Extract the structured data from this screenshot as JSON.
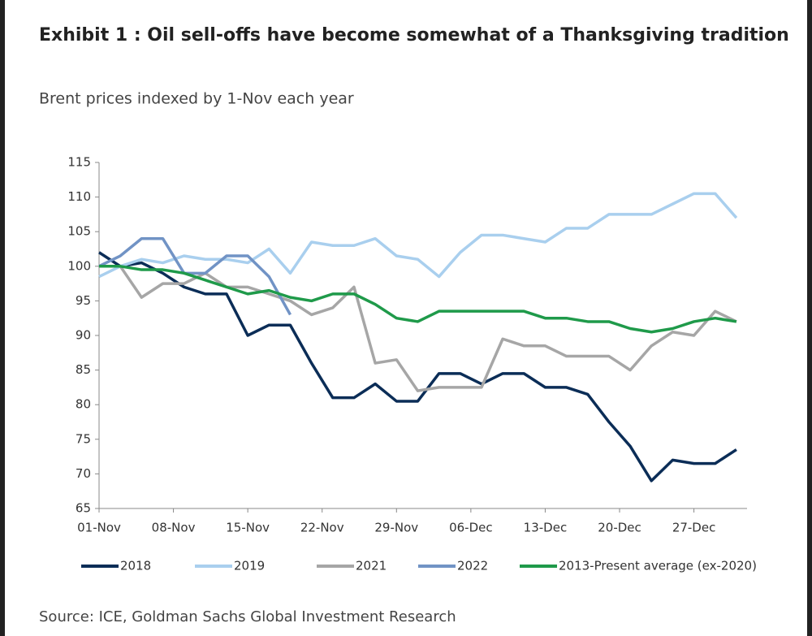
{
  "chart_data": {
    "type": "line",
    "title": "Exhibit 1 : Oil sell-offs have become somewhat of a Thanksgiving tradition",
    "subtitle": "Brent prices indexed by 1-Nov each year",
    "source": "Source: ICE, Goldman Sachs Global Investment Research",
    "x": [
      0,
      2,
      4,
      6,
      8,
      10,
      12,
      14,
      16,
      18,
      20,
      22,
      24,
      26,
      28,
      30,
      32,
      34,
      36,
      38,
      40,
      42,
      44,
      46,
      48,
      50,
      52,
      54,
      56,
      58,
      60
    ],
    "xlim": [
      0,
      61
    ],
    "xticks": [
      {
        "value": 0,
        "label": "01-Nov"
      },
      {
        "value": 7,
        "label": "08-Nov"
      },
      {
        "value": 14,
        "label": "15-Nov"
      },
      {
        "value": 21,
        "label": "22-Nov"
      },
      {
        "value": 28,
        "label": "29-Nov"
      },
      {
        "value": 35,
        "label": "06-Dec"
      },
      {
        "value": 42,
        "label": "13-Dec"
      },
      {
        "value": 49,
        "label": "20-Dec"
      },
      {
        "value": 56,
        "label": "27-Dec"
      }
    ],
    "ylim": [
      65,
      115
    ],
    "yticks": [
      65,
      70,
      75,
      80,
      85,
      90,
      95,
      100,
      105,
      110,
      115
    ],
    "grid": false,
    "legend": "bottom",
    "series": [
      {
        "name": "2018",
        "color": "#0b2d57",
        "values": [
          102,
          100,
          100.5,
          99,
          97,
          96,
          96,
          90,
          91.5,
          91.5,
          86,
          81,
          81,
          83,
          80.5,
          80.5,
          84.5,
          84.5,
          83,
          84.5,
          84.5,
          82.5,
          82.5,
          81.5,
          77.5,
          74,
          69,
          72,
          71.5,
          71.5,
          73.5
        ]
      },
      {
        "name": "2019",
        "color": "#a9cfee",
        "values": [
          98.5,
          100,
          101,
          100.5,
          101.5,
          101,
          101,
          100.5,
          102.5,
          99,
          103.5,
          103,
          103,
          104,
          101.5,
          101,
          98.5,
          102,
          104.5,
          104.5,
          104,
          103.5,
          105.5,
          105.5,
          107.5,
          107.5,
          107.5,
          109,
          110.5,
          110.5,
          107
        ]
      },
      {
        "name": "2021",
        "color": "#a6a6a6",
        "values": [
          100,
          100,
          95.5,
          97.5,
          97.5,
          99,
          97,
          97,
          96,
          95,
          93,
          94,
          97,
          86,
          86.5,
          82,
          82.5,
          82.5,
          82.5,
          89.5,
          88.5,
          88.5,
          87,
          87,
          87,
          85,
          88.5,
          90.5,
          90,
          93.5,
          92
        ]
      },
      {
        "name": "2022",
        "color": "#7193c5",
        "values": [
          100,
          101.5,
          104,
          104,
          99,
          99,
          101.5,
          101.5,
          98.5,
          93,
          null,
          null,
          null,
          null,
          null,
          null,
          null,
          null,
          null,
          null,
          null,
          null,
          null,
          null,
          null,
          null,
          null,
          null,
          null,
          null,
          null
        ]
      },
      {
        "name": "2013-Present average (ex-2020)",
        "color": "#1f9a4a",
        "values": [
          100,
          100,
          99.5,
          99.5,
          99,
          98,
          97,
          96,
          96.5,
          95.5,
          95,
          96,
          96,
          94.5,
          92.5,
          92,
          93.5,
          93.5,
          93.5,
          93.5,
          93.5,
          92.5,
          92.5,
          92,
          92,
          91,
          90.5,
          91,
          92,
          92.5,
          92
        ]
      }
    ]
  }
}
